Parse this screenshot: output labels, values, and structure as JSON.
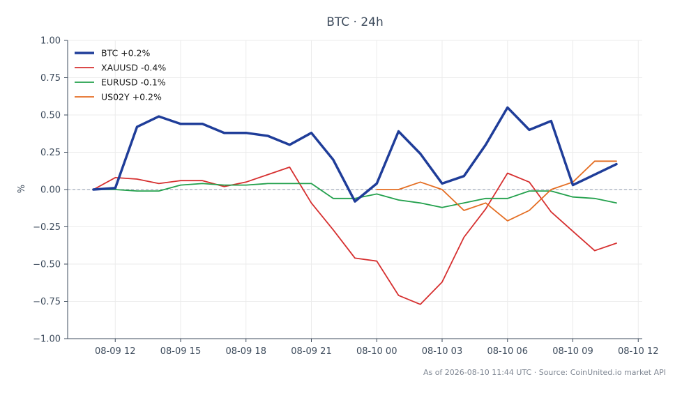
{
  "chart_data": {
    "type": "line",
    "title": "BTC · 24h",
    "xlabel": "",
    "ylabel": "%",
    "ylim": [
      -1.0,
      1.0
    ],
    "y_ticks": [
      "1.00",
      "0.75",
      "0.50",
      "0.25",
      "0.00",
      "−0.25",
      "−0.50",
      "−0.75",
      "−1.00"
    ],
    "x_tick_labels": [
      "08-09 12",
      "08-09 15",
      "08-09 18",
      "08-09 21",
      "08-10 00",
      "08-10 03",
      "08-10 06",
      "08-10 09",
      "08-10 12"
    ],
    "x": [
      "08-09 11",
      "08-09 12",
      "08-09 13",
      "08-09 14",
      "08-09 15",
      "08-09 16",
      "08-09 17",
      "08-09 18",
      "08-09 19",
      "08-09 20",
      "08-09 21",
      "08-09 22",
      "08-09 23",
      "08-10 00",
      "08-10 01",
      "08-10 02",
      "08-10 03",
      "08-10 04",
      "08-10 05",
      "08-10 06",
      "08-10 07",
      "08-10 08",
      "08-10 09",
      "08-10 10",
      "08-10 11"
    ],
    "grid": true,
    "zero_line": true,
    "legend_position": "top-left",
    "series": [
      {
        "name": "BTC +0.2%",
        "color": "#1f3d99",
        "width": "thick",
        "values": [
          0.0,
          0.01,
          0.42,
          0.49,
          0.44,
          0.44,
          0.38,
          0.38,
          0.36,
          0.3,
          0.38,
          0.2,
          -0.08,
          0.04,
          0.39,
          0.24,
          0.04,
          0.09,
          0.3,
          0.55,
          0.4,
          0.46,
          0.03,
          0.1,
          0.17
        ]
      },
      {
        "name": "XAUUSD -0.4%",
        "color": "#d62f2f",
        "width": "normal",
        "values": [
          0.0,
          0.08,
          0.07,
          0.04,
          0.06,
          0.06,
          0.02,
          0.05,
          0.1,
          0.15,
          -0.09,
          -0.27,
          -0.46,
          -0.48,
          -0.71,
          -0.77,
          -0.62,
          -0.32,
          -0.13,
          0.11,
          0.05,
          -0.15,
          -0.28,
          -0.41,
          -0.36
        ]
      },
      {
        "name": "EURUSD -0.1%",
        "color": "#22a04c",
        "width": "normal",
        "values": [
          0.0,
          0.0,
          -0.01,
          -0.01,
          0.03,
          0.04,
          0.03,
          0.03,
          0.04,
          0.04,
          0.04,
          -0.06,
          -0.06,
          -0.03,
          -0.07,
          -0.09,
          -0.12,
          -0.09,
          -0.06,
          -0.06,
          -0.01,
          -0.01,
          -0.05,
          -0.06,
          -0.09
        ]
      },
      {
        "name": "US02Y +0.2%",
        "color": "#e46d22",
        "width": "normal",
        "values": [
          null,
          null,
          null,
          null,
          null,
          null,
          null,
          null,
          null,
          null,
          null,
          null,
          null,
          0.0,
          0.0,
          0.05,
          0.0,
          -0.14,
          -0.09,
          -0.21,
          -0.14,
          0.0,
          0.05,
          0.19,
          0.19
        ]
      }
    ]
  },
  "footer": "As of 2026-08-10 11:44 UTC · Source: CoinUnited.io market API"
}
